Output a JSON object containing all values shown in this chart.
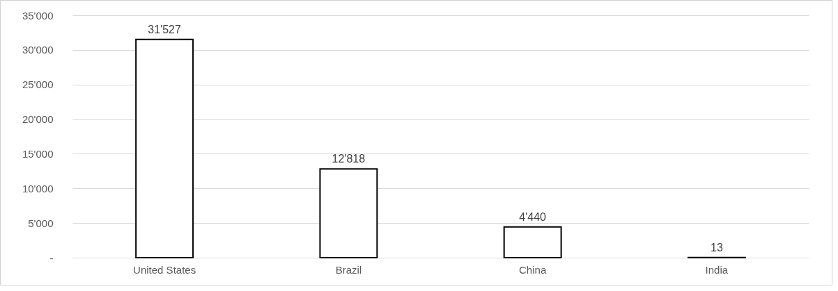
{
  "chart_data": {
    "type": "bar",
    "categories": [
      "United States",
      "Brazil",
      "China",
      "India"
    ],
    "values": [
      31527,
      12818,
      4440,
      13
    ],
    "value_labels": [
      "31'527",
      "12'818",
      "4'440",
      "13"
    ],
    "color": "#ffffff",
    "ylim": [
      0,
      35000
    ],
    "yticks": [
      {
        "value": 0,
        "label": "-"
      },
      {
        "value": 5000,
        "label": "5'000"
      },
      {
        "value": 10000,
        "label": "10'000"
      },
      {
        "value": 15000,
        "label": "15'000"
      },
      {
        "value": 20000,
        "label": "20'000"
      },
      {
        "value": 25000,
        "label": "25'000"
      },
      {
        "value": 30000,
        "label": "30'000"
      },
      {
        "value": 35000,
        "label": "35'000"
      }
    ],
    "grid": "y"
  }
}
